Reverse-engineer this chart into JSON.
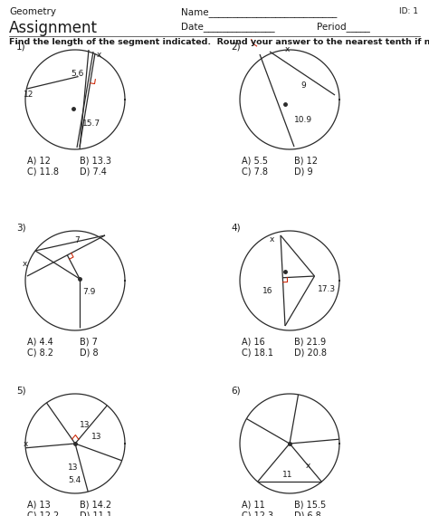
{
  "title_left": "Geometry",
  "title_center": "Name",
  "title_right": "ID: 1",
  "subtitle_left": "Assignment",
  "subtitle_center": "Date",
  "subtitle_period": "Period",
  "instruction": "Find the length of the segment indicated.  Round your answer to the nearest tenth if necessary.",
  "bg_color": "#ffffff",
  "line_color": "#2a2a2a",
  "red_color": "#cc2200",
  "font_size_header": 7.5,
  "font_size_assign": 12,
  "font_size_label": 6.5,
  "font_size_answer": 7,
  "font_size_instr": 6.8
}
